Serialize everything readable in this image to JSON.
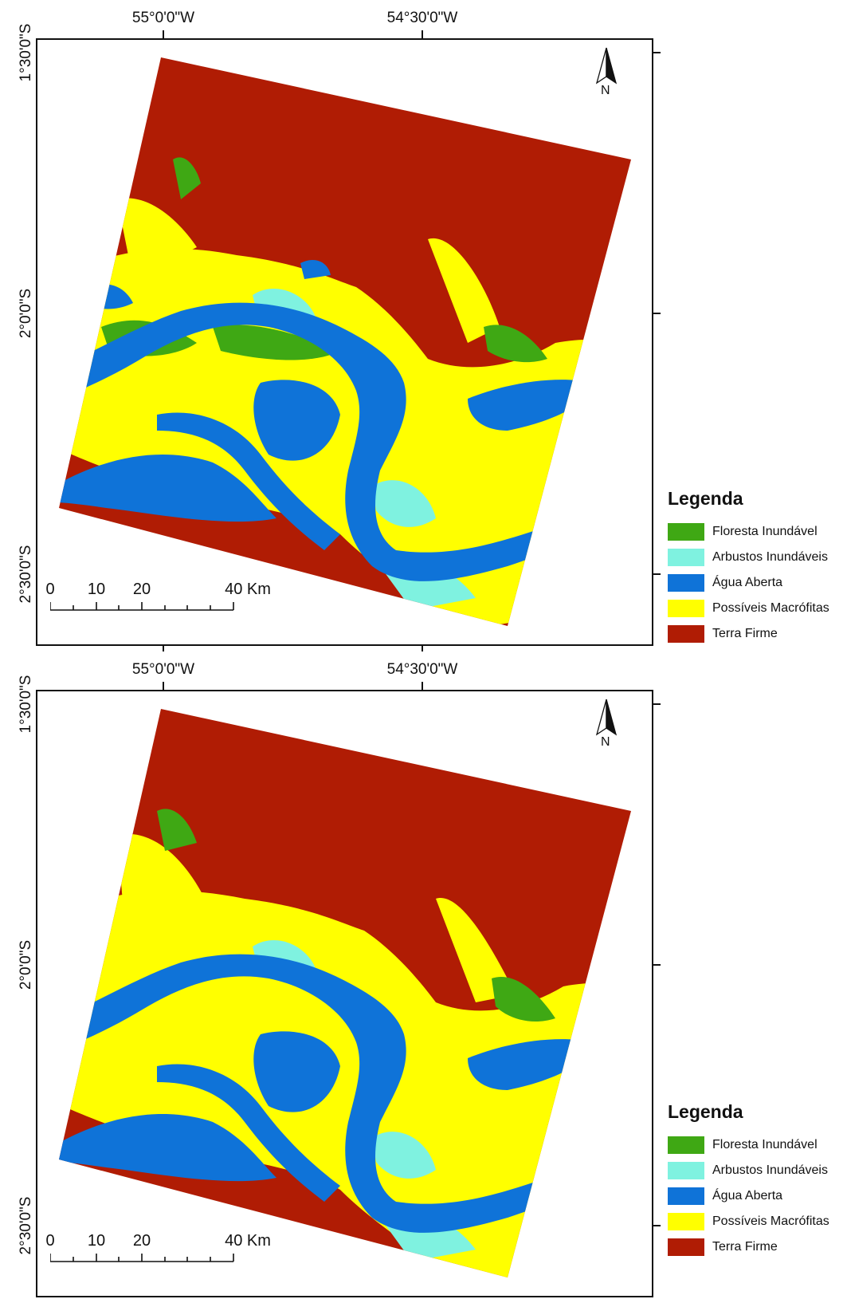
{
  "maps": [
    {
      "longitude_labels": [
        "55°0'0\"W",
        "54°30'0\"W"
      ],
      "latitude_labels": [
        "1°30'0\"S",
        "2°0'0\"S",
        "2°30'0\"S"
      ],
      "north_label": "N",
      "scale": {
        "labels": [
          "0",
          "10",
          "20",
          "40 Km"
        ]
      },
      "legend": {
        "title": "Legenda",
        "items": [
          {
            "label": "Floresta Inundável",
            "color": "#3fa814"
          },
          {
            "label": "Arbustos Inundáveis",
            "color": "#7ff2e0"
          },
          {
            "label": "Água Aberta",
            "color": "#0f73d8"
          },
          {
            "label": "Possíveis Macrófitas",
            "color": "#ffff00"
          },
          {
            "label": "Terra Firme",
            "color": "#b01c04"
          }
        ]
      }
    },
    {
      "longitude_labels": [
        "55°0'0\"W",
        "54°30'0\"W"
      ],
      "latitude_labels": [
        "1°30'0\"S",
        "2°0'0\"S",
        "2°30'0\"S"
      ],
      "north_label": "N",
      "scale": {
        "labels": [
          "0",
          "10",
          "20",
          "40 Km"
        ]
      },
      "legend": {
        "title": "Legenda",
        "items": [
          {
            "label": "Floresta Inundável",
            "color": "#3fa814"
          },
          {
            "label": "Arbustos Inundáveis",
            "color": "#7ff2e0"
          },
          {
            "label": "Água Aberta",
            "color": "#0f73d8"
          },
          {
            "label": "Possíveis Macrófitas",
            "color": "#ffff00"
          },
          {
            "label": "Terra Firme",
            "color": "#b01c04"
          }
        ]
      }
    }
  ]
}
